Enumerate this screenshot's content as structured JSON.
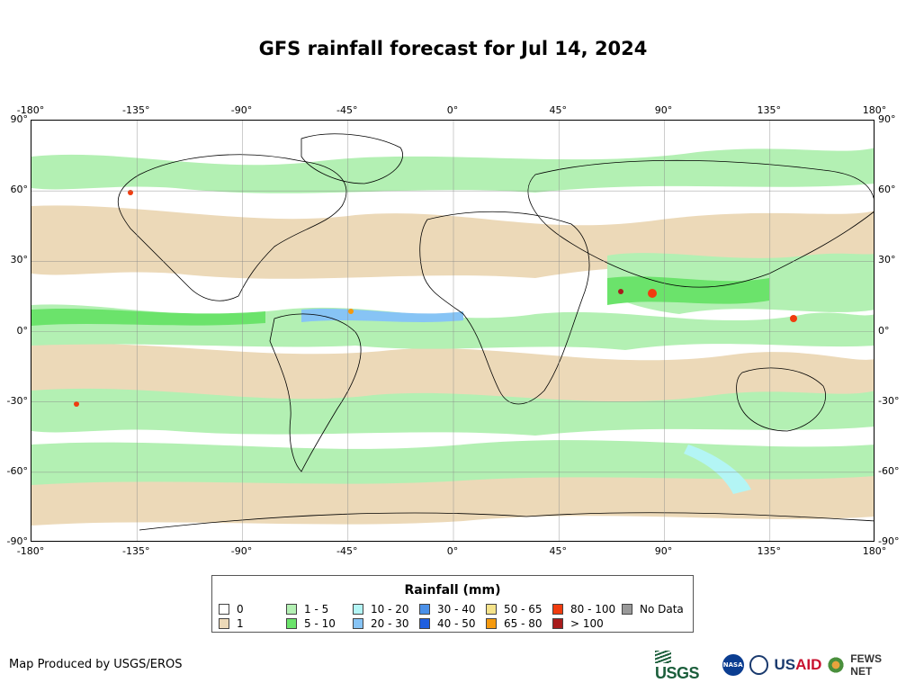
{
  "title": "GFS rainfall forecast for Jul 14, 2024",
  "map": {
    "projection": "equirectangular",
    "lon_range": [
      -180,
      180
    ],
    "lat_range": [
      -90,
      90
    ],
    "top_lon_ticks": [
      "-180°",
      "-135°",
      "-90°",
      "-45°",
      "0°",
      "45°",
      "90°",
      "135°",
      "180°"
    ],
    "bottom_lon_ticks": [
      "-180°",
      "-135°",
      "-90°",
      "-45°",
      "0°",
      "45°",
      "90°",
      "135°",
      "180°"
    ],
    "left_lat_ticks": [
      "90°",
      "60°",
      "30°",
      "0°",
      "-30°",
      "-60°",
      "-90°"
    ],
    "right_lat_ticks": [
      "90°",
      "60°",
      "30°",
      "0°",
      "-30°",
      "-60°",
      "-90°"
    ],
    "gridlines": true
  },
  "legend": {
    "title": "Rainfall (mm)",
    "items": [
      {
        "label": "0",
        "color": "#ffffff"
      },
      {
        "label": "1",
        "color": "#ecd9b8"
      },
      {
        "label": "1 - 5",
        "color": "#b3f0b3"
      },
      {
        "label": "5 - 10",
        "color": "#6be36b"
      },
      {
        "label": "10 - 20",
        "color": "#b3f5f5"
      },
      {
        "label": "20 - 30",
        "color": "#87c4f5"
      },
      {
        "label": "30 - 40",
        "color": "#4a90e8"
      },
      {
        "label": "40 - 50",
        "color": "#1f5fe0"
      },
      {
        "label": "50 - 65",
        "color": "#f5e38a"
      },
      {
        "label": "65 - 80",
        "color": "#f59a0f"
      },
      {
        "label": "80 - 100",
        "color": "#f03c0f"
      },
      {
        "label": "> 100",
        "color": "#a81c1c"
      },
      {
        "label": "No Data",
        "color": "#999999"
      }
    ]
  },
  "credit": "Map Produced by USGS/EROS",
  "logos": {
    "usgs": "USGS",
    "nasa": "NASA",
    "usaid_prefix": "US",
    "usaid_suffix": "AID",
    "fews": "FEWS NET"
  }
}
